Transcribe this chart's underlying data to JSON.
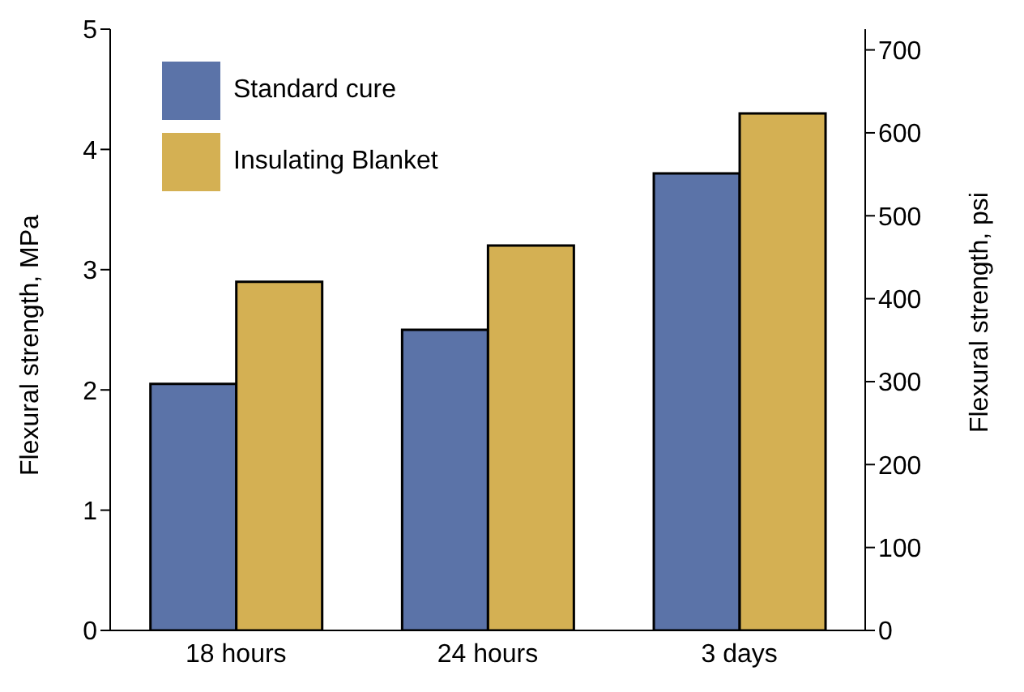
{
  "chart_data": {
    "type": "bar",
    "categories": [
      "18 hours",
      "24 hours",
      "3 days"
    ],
    "series": [
      {
        "name": "Standard cure",
        "color": "#5b73a8",
        "values": [
          2.05,
          2.5,
          3.8
        ]
      },
      {
        "name": "Insulating Blanket",
        "color": "#d4b053",
        "values": [
          2.9,
          3.2,
          4.3
        ]
      }
    ],
    "ylabel": "Flexural strength, MPa",
    "y2label": "Flexural strength, psi",
    "ylim": [
      0,
      5
    ],
    "yticks": [
      0,
      1,
      2,
      3,
      4,
      5
    ],
    "y2lim": [
      0,
      725
    ],
    "y2ticks": [
      0,
      100,
      200,
      300,
      400,
      500,
      600,
      700
    ],
    "legend": "top left"
  }
}
